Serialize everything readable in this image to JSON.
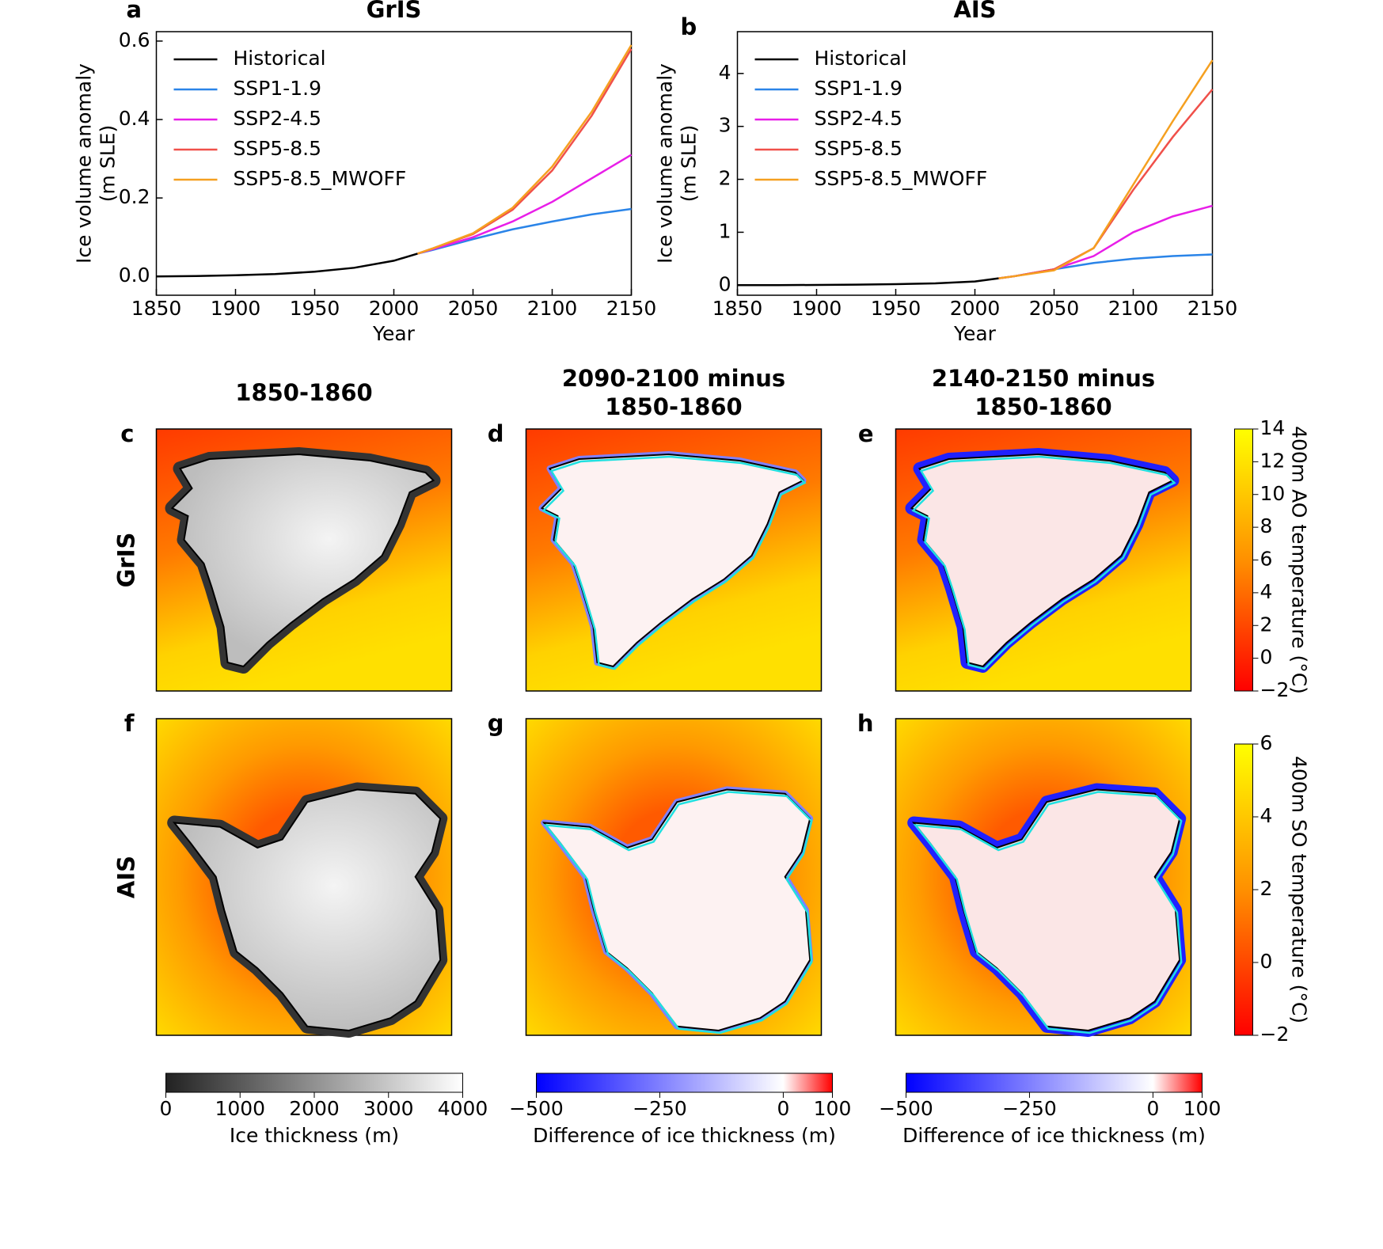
{
  "chart_data": [
    {
      "type": "line",
      "panel": "a",
      "title": "GrIS",
      "xlabel": "Year",
      "ylabel": [
        "Ice volume anomaly",
        "(m SLE)"
      ],
      "x": [
        1850,
        1875,
        1900,
        1925,
        1950,
        1975,
        2000,
        2015,
        2025,
        2050,
        2075,
        2100,
        2125,
        2150
      ],
      "xlim": [
        1850,
        2150
      ],
      "xticks": [
        1850,
        1900,
        1950,
        2000,
        2050,
        2100,
        2150
      ],
      "ylim": [
        -0.048,
        0.624
      ],
      "yticks": [
        {
          "value": 0,
          "label": "0.0"
        },
        0.2,
        0.4,
        0.6
      ],
      "legend": "upper left",
      "series": [
        {
          "name": "Historical",
          "color": "#000000",
          "values": [
            0,
            0.001,
            0.003,
            0.006,
            0.012,
            0.022,
            0.04,
            0.058,
            null,
            null,
            null,
            null,
            null,
            null
          ]
        },
        {
          "name": "SSP1-1.9",
          "color": "#2a84e8",
          "values": [
            null,
            null,
            null,
            null,
            null,
            null,
            null,
            0.058,
            0.068,
            0.095,
            0.12,
            0.14,
            0.158,
            0.172
          ]
        },
        {
          "name": "SSP2-4.5",
          "color": "#e81ee8",
          "values": [
            null,
            null,
            null,
            null,
            null,
            null,
            null,
            0.058,
            0.07,
            0.1,
            0.14,
            0.19,
            0.25,
            0.31
          ]
        },
        {
          "name": "SSP5-8.5",
          "color": "#f0504a",
          "values": [
            null,
            null,
            null,
            null,
            null,
            null,
            null,
            0.058,
            0.072,
            0.108,
            0.17,
            0.27,
            0.41,
            0.58
          ]
        },
        {
          "name": "SSP5-8.5_MWOFF",
          "color": "#f5a020",
          "values": [
            null,
            null,
            null,
            null,
            null,
            null,
            null,
            0.058,
            0.072,
            0.11,
            0.175,
            0.28,
            0.42,
            0.59
          ]
        }
      ]
    },
    {
      "type": "line",
      "panel": "b",
      "title": "AIS",
      "xlabel": "Year",
      "ylabel": [
        "Ice volume anomaly",
        "(m SLE)"
      ],
      "x": [
        1850,
        1875,
        1900,
        1925,
        1950,
        1975,
        2000,
        2015,
        2025,
        2050,
        2075,
        2100,
        2125,
        2150
      ],
      "xlim": [
        1850,
        2150
      ],
      "xticks": [
        1850,
        1900,
        1950,
        2000,
        2050,
        2100,
        2150
      ],
      "ylim": [
        -0.19,
        4.79
      ],
      "yticks": [
        0,
        1,
        2,
        3,
        4
      ],
      "legend": "upper left",
      "series": [
        {
          "name": "Historical",
          "color": "#000000",
          "values": [
            0,
            0,
            0.005,
            0.01,
            0.02,
            0.035,
            0.07,
            0.13,
            null,
            null,
            null,
            null,
            null,
            null
          ]
        },
        {
          "name": "SSP1-1.9",
          "color": "#2a84e8",
          "values": [
            null,
            null,
            null,
            null,
            null,
            null,
            null,
            0.13,
            0.17,
            0.3,
            0.42,
            0.5,
            0.55,
            0.58
          ]
        },
        {
          "name": "SSP2-4.5",
          "color": "#e81ee8",
          "values": [
            null,
            null,
            null,
            null,
            null,
            null,
            null,
            0.13,
            0.17,
            0.3,
            0.55,
            1.0,
            1.3,
            1.5
          ]
        },
        {
          "name": "SSP5-8.5",
          "color": "#f0504a",
          "values": [
            null,
            null,
            null,
            null,
            null,
            null,
            null,
            0.13,
            0.17,
            0.3,
            0.7,
            1.8,
            2.8,
            3.7
          ]
        },
        {
          "name": "SSP5-8.5_MWOFF",
          "color": "#f5a020",
          "values": [
            null,
            null,
            null,
            null,
            null,
            null,
            null,
            0.13,
            0.17,
            0.28,
            0.7,
            1.9,
            3.1,
            4.25
          ]
        }
      ]
    }
  ],
  "maps": {
    "column_titles": [
      [
        "1850-1860"
      ],
      [
        "2090-2100 minus",
        "1850-1860"
      ],
      [
        "2140-2150 minus",
        "1850-1860"
      ]
    ],
    "row_labels": [
      "GrIS",
      "AIS"
    ],
    "panel_letters": [
      [
        "c",
        "d",
        "e"
      ],
      [
        "f",
        "g",
        "h"
      ]
    ],
    "side_colorbars": [
      {
        "label": "400m AO temperature (°C)",
        "lim": [
          -2,
          14
        ],
        "ticks": [
          {
            "value": -2,
            "label": "−2"
          },
          0,
          2,
          4,
          6,
          8,
          10,
          12,
          14
        ]
      },
      {
        "label": "400m SO temperature (°C)",
        "lim": [
          -2,
          6
        ],
        "ticks": [
          {
            "value": -2,
            "label": "−2"
          },
          0,
          2,
          4,
          6
        ]
      }
    ],
    "bottom_colorbars": [
      {
        "label": "Ice thickness (m)",
        "lim": [
          0,
          4000
        ],
        "ticks": [
          0,
          1000,
          2000,
          3000,
          4000
        ]
      },
      {
        "label": "Difference of ice thickness (m)",
        "lim": [
          -500,
          100
        ],
        "ticks": [
          {
            "value": -500,
            "label": "−500"
          },
          {
            "value": -250,
            "label": "−250"
          },
          0,
          100
        ]
      },
      {
        "label": "Difference of ice thickness (m)",
        "lim": [
          -500,
          100
        ],
        "ticks": [
          {
            "value": -500,
            "label": "−500"
          },
          {
            "value": -250,
            "label": "−250"
          },
          0,
          100
        ]
      }
    ]
  }
}
